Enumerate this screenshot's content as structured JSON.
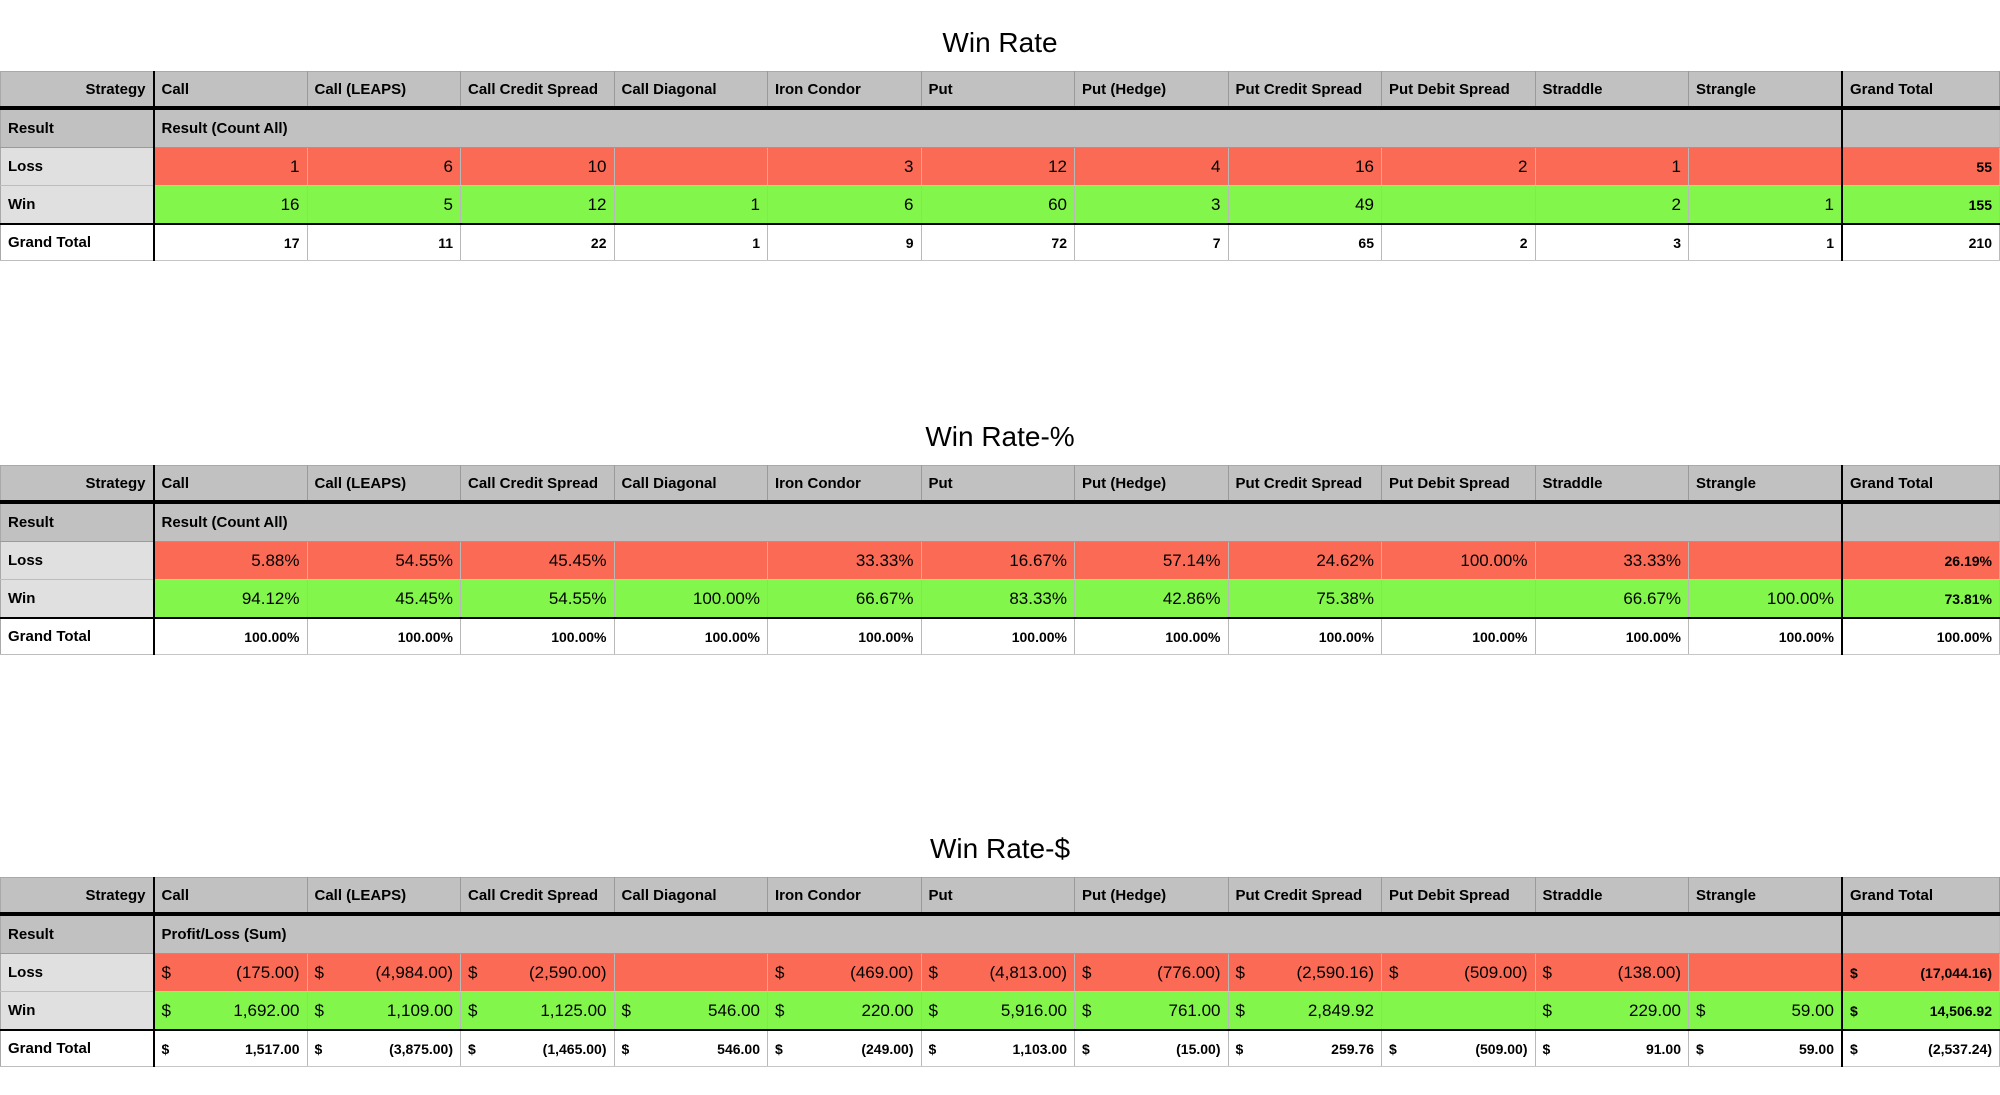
{
  "colors": {
    "header_bg": "#c1c1c1",
    "label_bg": "#e0e0e0",
    "loss_bg": "#fa6a55",
    "win_bg": "#82f64b",
    "total_bg": "#ffffff",
    "grid_dark": "#000000",
    "grid_light": "#c6c6c6"
  },
  "columns": [
    "Strategy",
    "Call",
    "Call (LEAPS)",
    "Call Credit Spread",
    "Call Diagonal",
    "Iron Condor",
    "Put",
    "Put (Hedge)",
    "Put Credit Spread",
    "Put Debit Spread",
    "Straddle",
    "Strangle",
    "Grand Total"
  ],
  "tables": [
    {
      "title": "Win Rate",
      "result_label": "Result",
      "result_span_label": "Result (Count All)",
      "currency": false,
      "currency_symbol": "",
      "rows": [
        {
          "label": "Loss",
          "type": "loss",
          "values": [
            "1",
            "6",
            "10",
            "",
            "3",
            "12",
            "4",
            "16",
            "2",
            "1",
            "",
            "55"
          ]
        },
        {
          "label": "Win",
          "type": "win",
          "values": [
            "16",
            "5",
            "12",
            "1",
            "6",
            "60",
            "3",
            "49",
            "",
            "2",
            "1",
            "155"
          ]
        },
        {
          "label": "Grand Total",
          "type": "total",
          "values": [
            "17",
            "11",
            "22",
            "1",
            "9",
            "72",
            "7",
            "65",
            "2",
            "3",
            "1",
            "210"
          ]
        }
      ]
    },
    {
      "title": "Win Rate-%",
      "result_label": "Result",
      "result_span_label": "Result (Count All)",
      "currency": false,
      "currency_symbol": "",
      "rows": [
        {
          "label": "Loss",
          "type": "loss",
          "values": [
            "5.88%",
            "54.55%",
            "45.45%",
            "",
            "33.33%",
            "16.67%",
            "57.14%",
            "24.62%",
            "100.00%",
            "33.33%",
            "",
            "26.19%"
          ]
        },
        {
          "label": "Win",
          "type": "win",
          "values": [
            "94.12%",
            "45.45%",
            "54.55%",
            "100.00%",
            "66.67%",
            "83.33%",
            "42.86%",
            "75.38%",
            "",
            "66.67%",
            "100.00%",
            "73.81%"
          ]
        },
        {
          "label": "Grand Total",
          "type": "total",
          "values": [
            "100.00%",
            "100.00%",
            "100.00%",
            "100.00%",
            "100.00%",
            "100.00%",
            "100.00%",
            "100.00%",
            "100.00%",
            "100.00%",
            "100.00%",
            "100.00%"
          ]
        }
      ]
    },
    {
      "title": "Win Rate-$",
      "result_label": "Result",
      "result_span_label": "Profit/Loss (Sum)",
      "currency": true,
      "currency_symbol": "$",
      "rows": [
        {
          "label": "Loss",
          "type": "loss",
          "values": [
            "(175.00)",
            "(4,984.00)",
            "(2,590.00)",
            "",
            "(469.00)",
            "(4,813.00)",
            "(776.00)",
            "(2,590.16)",
            "(509.00)",
            "(138.00)",
            "",
            "(17,044.16)"
          ]
        },
        {
          "label": "Win",
          "type": "win",
          "values": [
            "1,692.00",
            "1,109.00",
            "1,125.00",
            "546.00",
            "220.00",
            "5,916.00",
            "761.00",
            "2,849.92",
            "",
            "229.00",
            "59.00",
            "14,506.92"
          ]
        },
        {
          "label": "Grand Total",
          "type": "total",
          "values": [
            "1,517.00",
            "(3,875.00)",
            "(1,465.00)",
            "546.00",
            "(249.00)",
            "1,103.00",
            "(15.00)",
            "259.76",
            "(509.00)",
            "91.00",
            "59.00",
            "(2,537.24)"
          ]
        }
      ]
    }
  ]
}
